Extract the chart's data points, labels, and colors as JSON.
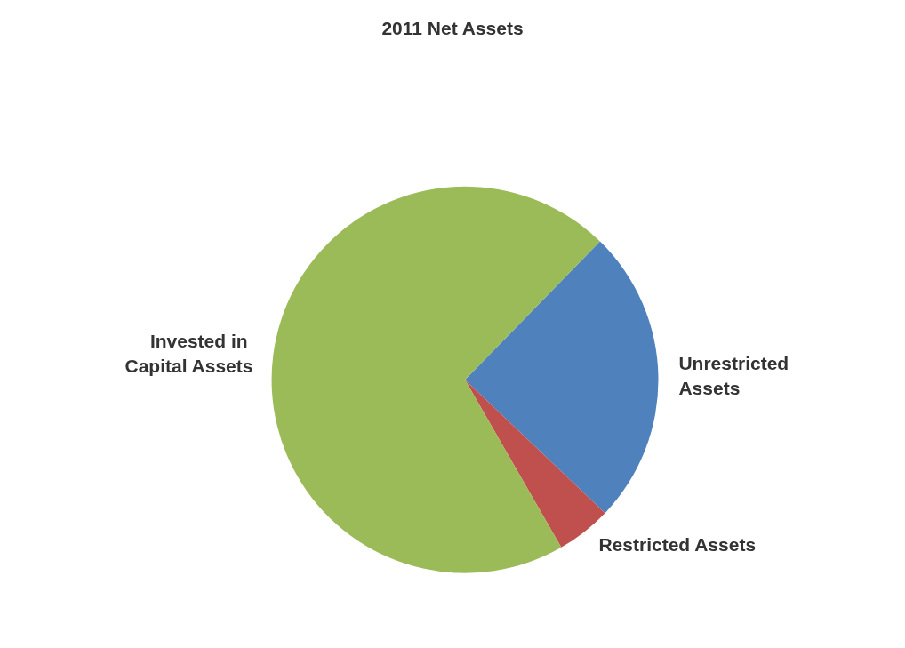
{
  "chart_data": {
    "type": "pie",
    "title": "2011 Net Assets",
    "categories": [
      "Unrestricted Assets",
      "Restricted Assets",
      "Invested in Capital Assets"
    ],
    "values": [
      24.8,
      4.6,
      70.6
    ],
    "colors": [
      "#4f81bd",
      "#c0504d",
      "#9bbb59"
    ],
    "legend": false
  }
}
